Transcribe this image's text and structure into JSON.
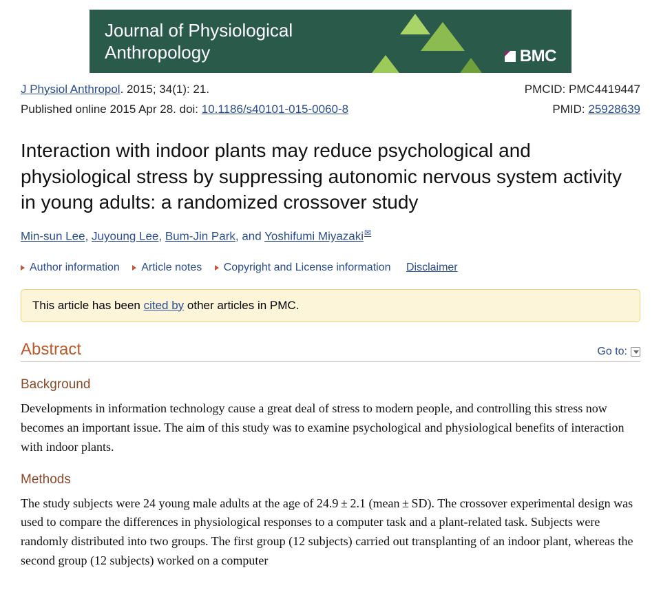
{
  "banner": {
    "journal_line1": "Journal of Physiological",
    "journal_line2": "Anthropology",
    "brand": "BMC",
    "bg_color": "#2a5a4a",
    "text_color": "#ffffff"
  },
  "citation": {
    "journal_abbrev": "J Physiol Anthropol",
    "year_vol_issue_page": ". 2015; 34(1): 21.",
    "published_prefix": "Published online 2015 Apr 28. doi: ",
    "doi": "10.1186/s40101-015-0060-8",
    "pmcid_label": "PMCID: ",
    "pmcid": "PMC4419447",
    "pmid_label": "PMID: ",
    "pmid": "25928639"
  },
  "title": "Interaction with indoor plants may reduce psychological and physiological stress by suppressing autonomic nervous system activity in young adults: a randomized crossover study",
  "authors": {
    "list": [
      "Min-sun Lee",
      "Juyoung Lee",
      "Bum-Jin Park",
      "Yoshifumi Miyazaki"
    ],
    "sep": ", ",
    "last_sep": ", and ",
    "corr_symbol": "✉"
  },
  "info_links": {
    "author_info": "Author information",
    "article_notes": "Article notes",
    "copyright": "Copyright and License information",
    "disclaimer": "Disclaimer"
  },
  "cited_box": {
    "pre": "This article has been ",
    "link": "cited by",
    "post": " other articles in PMC."
  },
  "abstract": {
    "heading": "Abstract",
    "goto_label": "Go to:",
    "sections": {
      "background": {
        "heading": "Background",
        "text": "Developments in information technology cause a great deal of stress to modern people, and controlling this stress now becomes an important issue. The aim of this study was to examine psychological and physiological benefits of interaction with indoor plants."
      },
      "methods": {
        "heading": "Methods",
        "text": "The study subjects were 24 young male adults at the age of 24.9 ± 2.1 (mean ± SD). The crossover experimental design was used to compare the differences in physiological responses to a computer task and a plant-related task. Subjects were randomly distributed into two groups. The first group (12 subjects) carried out transplanting of an indoor plant, whereas the second group (12 subjects) worked on a computer"
      }
    }
  },
  "colors": {
    "link": "#2a4d8f",
    "accent": "#b85a2a",
    "sub_accent": "#8a4a2a",
    "caret": "#c0563c",
    "cited_bg": "#fdf5d9",
    "cited_border": "#e9d18a"
  }
}
